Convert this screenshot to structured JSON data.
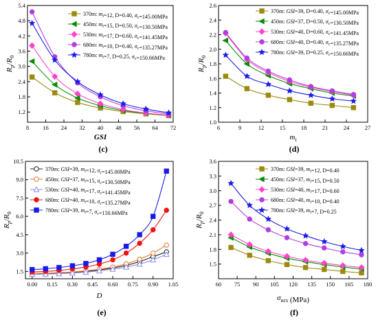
{
  "chart_data": [
    {
      "id": "c",
      "type": "line",
      "sublabel": "(c)",
      "xlabel": "GSI",
      "ylabel_main": "R",
      "ylabel_sub1": "p",
      "ylabel_slash": "/",
      "ylabel_main2": "R",
      "ylabel_sub2": "0",
      "xlim": [
        8,
        72
      ],
      "ylim": [
        0.8,
        5.4
      ],
      "xticks": [
        "8",
        "16",
        "24",
        "32",
        "40",
        "48",
        "56",
        "64",
        "72"
      ],
      "yticks": [
        "1.2",
        "1.8",
        "2.4",
        "3.0",
        "3.6",
        "4.2",
        "4.8",
        "5.4"
      ],
      "x": [
        10,
        20,
        30,
        40,
        50,
        60,
        70
      ],
      "legend_position": "top-right",
      "series": [
        {
          "name": "370m: mi=12, D=0.40, σc=145.00MPa",
          "legend": {
            "depth": "370m:",
            "p1": "m",
            "p1s": "i",
            "v1": "=12, D=0.40, ",
            "p2": "σ",
            "p2s": "c",
            "v2": "=145.00MPa"
          },
          "color": "#9b8a0e",
          "marker": "square",
          "values": [
            2.58,
            1.96,
            1.58,
            1.36,
            1.22,
            1.13,
            1.06
          ]
        },
        {
          "name": "450m: mi=15, D=0.50, σc=130.50MPa",
          "legend": {
            "depth": "450m:",
            "p1": "m",
            "p1s": "i",
            "v1": "=15, D=0.50, ",
            "p2": "σ",
            "p2s": "c",
            "v2": "=130.50MPa"
          },
          "color": "#0a8a0a",
          "marker": "triangle-left",
          "values": [
            3.2,
            2.28,
            1.75,
            1.45,
            1.26,
            1.15,
            1.07
          ]
        },
        {
          "name": "530m: mi=17, D=0.60, σc=141.45MPa",
          "legend": {
            "depth": "530m:",
            "p1": "m",
            "p1s": "i",
            "v1": "=17, D=0.60, ",
            "p2": "σ",
            "p2s": "c",
            "v2": "=141.45MPa"
          },
          "color": "#ff44c8",
          "marker": "diamond",
          "values": [
            3.82,
            2.6,
            1.92,
            1.53,
            1.3,
            1.16,
            1.08
          ]
        },
        {
          "name": "680m: mi=10, D=0.40, σc=135.27MPa",
          "legend": {
            "depth": "680m:",
            "p1": "m",
            "p1s": "i",
            "v1": "=10, D=0.40, ",
            "p2": "σ",
            "p2s": "c",
            "v2": "=135.27MPa"
          },
          "color": "#b03ee0",
          "marker": "circle",
          "values": [
            5.15,
            3.38,
            2.35,
            1.8,
            1.45,
            1.25,
            1.12
          ]
        },
        {
          "name": "780m: mi=7, D=0.25, σc=150.66MPa",
          "legend": {
            "depth": "780m:",
            "p1": "m",
            "p1s": "i",
            "v1": "=7,   D=0.25, ",
            "p2": "σ",
            "p2s": "c",
            "v2": "=150.66MPa"
          },
          "color": "#1a1ae6",
          "marker": "star",
          "values": [
            4.7,
            3.25,
            2.4,
            1.88,
            1.53,
            1.32,
            1.17
          ]
        }
      ]
    },
    {
      "id": "d",
      "type": "line",
      "sublabel": "(d)",
      "xlabel": "m",
      "xlabel_sub": "i",
      "ylabel_main": "R",
      "ylabel_sub1": "p",
      "ylabel_slash": "/",
      "ylabel_main2": "R",
      "ylabel_sub2": "0",
      "xlim": [
        6,
        27
      ],
      "ylim": [
        1.0,
        2.6
      ],
      "xticks": [
        "6",
        "9",
        "12",
        "15",
        "18",
        "21",
        "24",
        "27"
      ],
      "yticks": [
        "1.0",
        "1.2",
        "1.4",
        "1.6",
        "1.8",
        "2.0",
        "2.2",
        "2.4",
        "2.6"
      ],
      "x": [
        7,
        10,
        13,
        16,
        19,
        22,
        25
      ],
      "legend_position": "top-right",
      "series": [
        {
          "name": "370m: GSI=39, D=0.40, σc=145.00MPa",
          "legend": {
            "depth": "370m:",
            "p1": "GSI",
            "p1s": "",
            "v1": "=39, D=0.40, ",
            "p2": "σ",
            "p2s": "c",
            "v2": "=145.00MPa"
          },
          "color": "#9b8a0e",
          "marker": "square",
          "values": [
            1.63,
            1.46,
            1.37,
            1.31,
            1.26,
            1.23,
            1.2
          ]
        },
        {
          "name": "450m: GSI=37, D=0.50, σc=130.50MPa",
          "legend": {
            "depth": "450m:",
            "p1": "GSI",
            "p1s": "",
            "v1": "=37, D=0.50, ",
            "p2": "σ",
            "p2s": "c",
            "v2": "=130.50MPa"
          },
          "color": "#0a8a0a",
          "marker": "triangle-left",
          "values": [
            2.12,
            1.8,
            1.64,
            1.53,
            1.46,
            1.4,
            1.36
          ]
        },
        {
          "name": "530m: GSI=40, D=0.60, σc=141.45MPa",
          "legend": {
            "depth": "530m:",
            "p1": "GSI",
            "p1s": "",
            "v1": "=40, D=0.60, ",
            "p2": "σ",
            "p2s": "c",
            "v2": "=141.45MPa"
          },
          "color": "#ff44c8",
          "marker": "diamond",
          "values": [
            2.22,
            1.86,
            1.68,
            1.56,
            1.48,
            1.42,
            1.37
          ]
        },
        {
          "name": "680m: GSI=40, D=0.40, σc=135.27MPa",
          "legend": {
            "depth": "680m:",
            "p1": "GSI",
            "p1s": "",
            "v1": "=40, D=0.40, ",
            "p2": "σ",
            "p2s": "c",
            "v2": "=135.27MPa"
          },
          "color": "#b03ee0",
          "marker": "circle",
          "values": [
            2.23,
            1.88,
            1.7,
            1.58,
            1.49,
            1.43,
            1.38
          ]
        },
        {
          "name": "780m: GSI=39, D=0.25, σc=150.66MPa",
          "legend": {
            "depth": "780m:",
            "p1": "GSI",
            "p1s": "",
            "v1": "=39, D=0.25, ",
            "p2": "σ",
            "p2s": "c",
            "v2": "=150.66MPa"
          },
          "color": "#1a1ae6",
          "marker": "star",
          "values": [
            1.92,
            1.63,
            1.52,
            1.43,
            1.37,
            1.32,
            1.29
          ]
        }
      ]
    },
    {
      "id": "e",
      "type": "line",
      "sublabel": "(e)",
      "xlabel": "D",
      "ylabel_main": "R",
      "ylabel_sub1": "p",
      "ylabel_slash": "/",
      "ylabel_main2": "R",
      "ylabel_sub2": "0",
      "xlim": [
        -0.05,
        1.05
      ],
      "ylim": [
        0.9,
        10.5
      ],
      "xticks": [
        "0.00",
        "0.15",
        "0.30",
        "0.45",
        "0.60",
        "0.75",
        "0.90",
        "1.05"
      ],
      "xtickvals": [
        0,
        0.15,
        0.3,
        0.45,
        0.6,
        0.75,
        0.9,
        1.05
      ],
      "yticks": [
        "1.5",
        "3.0",
        "4.5",
        "6.0",
        "7.5",
        "9.0",
        "10.5"
      ],
      "x": [
        0,
        0.1,
        0.2,
        0.3,
        0.4,
        0.5,
        0.6,
        0.7,
        0.8,
        0.9,
        1.0
      ],
      "legend_position": "top-left",
      "series": [
        {
          "name": "370m: GSI=39, mi=12, σc=145.00MPa",
          "legend": {
            "depth": "370m:",
            "p1": "GSI",
            "p1s": "",
            "v1": "=39, ",
            "p2": "m",
            "p2s": "i",
            "v2": "=12, ",
            "p3": "σ",
            "p3s": "c",
            "v3": "=145.00MPa"
          },
          "color": "#222222",
          "marker": "circle-open",
          "values": [
            1.3,
            1.32,
            1.36,
            1.42,
            1.5,
            1.62,
            1.78,
            2.0,
            2.3,
            2.7,
            3.1
          ]
        },
        {
          "name": "450m: GSI=37, mi=15, σc=130.50MPa",
          "legend": {
            "depth": "450m:",
            "p1": "GSI",
            "p1s": "",
            "v1": "=37, ",
            "p2": "m",
            "p2s": "i",
            "v2": "=15, ",
            "p3": "σ",
            "p3s": "c",
            "v3": "=130.50MPa"
          },
          "color": "#e0782a",
          "marker": "circle-open",
          "values": [
            1.32,
            1.35,
            1.4,
            1.46,
            1.55,
            1.68,
            1.86,
            2.12,
            2.5,
            3.0,
            3.65
          ]
        },
        {
          "name": "530m: GSI=40, mi=17, σc=141.45MPa",
          "legend": {
            "depth": "530m:",
            "p1": "GSI",
            "p1s": "",
            "v1": "=40, ",
            "p2": "m",
            "p2s": "i",
            "v2": "=17, ",
            "p3": "σ",
            "p3s": "c",
            "v3": "=141.45MPa"
          },
          "color": "#8a8af0",
          "marker": "triangle-open",
          "values": [
            1.26,
            1.28,
            1.32,
            1.37,
            1.44,
            1.55,
            1.68,
            1.86,
            2.1,
            2.45,
            2.9
          ]
        },
        {
          "name": "680m: GSI=40, mi=10, σc=135.27MPa",
          "legend": {
            "depth": "680m:",
            "p1": "GSI",
            "p1s": "",
            "v1": "=40, ",
            "p2": "m",
            "p2s": "i",
            "v2": "=10, ",
            "p3": "σ",
            "p3s": "c",
            "v3": "=135.27MPa"
          },
          "color": "#ee1111",
          "marker": "circle",
          "values": [
            1.45,
            1.5,
            1.58,
            1.7,
            1.86,
            2.1,
            2.45,
            3.0,
            3.8,
            4.9,
            6.5
          ]
        },
        {
          "name": "780m: GSI=39, mi=7, σc=150.66MPa",
          "legend": {
            "depth": "780m:",
            "p1": "GSI",
            "p1s": "",
            "v1": "=39, ",
            "p2": "m",
            "p2s": "i",
            "v2": "=7,   ",
            "p3": "σ",
            "p3s": "c",
            "v3": "=150.66MPa"
          },
          "color": "#1a1ae6",
          "marker": "square",
          "values": [
            1.65,
            1.72,
            1.82,
            1.96,
            2.15,
            2.45,
            2.9,
            3.55,
            4.5,
            6.0,
            9.7
          ]
        }
      ]
    },
    {
      "id": "f",
      "type": "line",
      "sublabel": "(f)",
      "xlabel": "σ",
      "xlabel_sub": "ucs",
      "xlabel_unit": " (MPa)",
      "ylabel_main": "R",
      "ylabel_sub1": "p",
      "ylabel_slash": "/",
      "ylabel_main2": "R",
      "ylabel_sub2": "0",
      "xlim": [
        60,
        180
      ],
      "ylim": [
        1.2,
        3.6
      ],
      "xticks": [
        "60",
        "75",
        "90",
        "105",
        "120",
        "135",
        "150",
        "165",
        "180"
      ],
      "yticks": [
        "1.5",
        "1.8",
        "2.1",
        "2.4",
        "2.7",
        "3.0",
        "3.3",
        "3.6"
      ],
      "ytickvals": [
        1.5,
        1.8,
        2.1,
        2.4,
        2.7,
        3.0,
        3.3,
        3.6
      ],
      "x": [
        70,
        85,
        100,
        115,
        130,
        145,
        160,
        175
      ],
      "legend_position": "top-right",
      "series": [
        {
          "name": "370m: GSI=39, mi=12, D=0.40",
          "legend": {
            "depth": "370m:",
            "p1": "GSI",
            "p1s": "",
            "v1": "=39, ",
            "p2": "m",
            "p2s": "i",
            "v2": "=12, D=0.40"
          },
          "color": "#9b8a0e",
          "marker": "square",
          "values": [
            1.84,
            1.68,
            1.57,
            1.49,
            1.43,
            1.39,
            1.35,
            1.32
          ]
        },
        {
          "name": "450m: GSI=37, mi=15, D=0.50",
          "legend": {
            "depth": "450m:",
            "p1": "GSI",
            "p1s": "",
            "v1": "=37, ",
            "p2": "m",
            "p2s": "i",
            "v2": "=15, D=0.50"
          },
          "color": "#0a8a0a",
          "marker": "triangle-left",
          "values": [
            2.04,
            1.85,
            1.72,
            1.62,
            1.55,
            1.49,
            1.44,
            1.4
          ]
        },
        {
          "name": "530m: GSI=40, mi=17, D=0.60",
          "legend": {
            "depth": "530m:",
            "p1": "GSI",
            "p1s": "",
            "v1": "=40, ",
            "p2": "m",
            "p2s": "i",
            "v2": "=17, D=0.60"
          },
          "color": "#ff44c8",
          "marker": "diamond",
          "values": [
            2.1,
            1.9,
            1.76,
            1.66,
            1.58,
            1.52,
            1.47,
            1.43
          ]
        },
        {
          "name": "680m: GSI=40, mi=10, D=0.40",
          "legend": {
            "depth": "680m:",
            "p1": "GSI",
            "p1s": "",
            "v1": "=40, ",
            "p2": "m",
            "p2s": "i",
            "v2": "=10, D=0.40"
          },
          "color": "#b03ee0",
          "marker": "circle",
          "values": [
            2.78,
            2.42,
            2.2,
            2.04,
            1.92,
            1.83,
            1.75,
            1.69
          ]
        },
        {
          "name": "780m: GSI=39, mi=7, D=0.25",
          "legend": {
            "depth": "780m:",
            "p1": "GSI",
            "p1s": "",
            "v1": "=39, ",
            "p2": "m",
            "p2s": "i",
            "v2": "=7,   D=0.25"
          },
          "color": "#1a1ae6",
          "marker": "star",
          "values": [
            3.15,
            2.7,
            2.42,
            2.22,
            2.08,
            1.96,
            1.86,
            1.78
          ]
        }
      ]
    }
  ]
}
